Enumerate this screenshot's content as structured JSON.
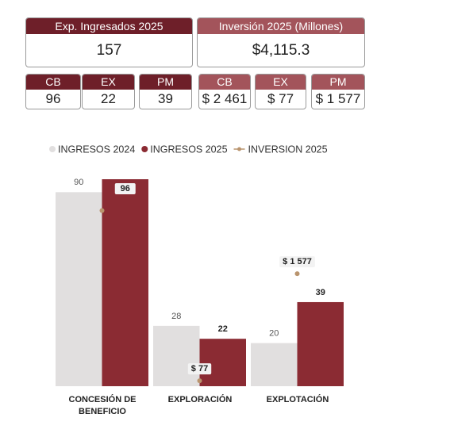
{
  "cards": {
    "main": [
      {
        "title": "Exp. Ingresados 2025",
        "value": "157"
      },
      {
        "title": "Inversión 2025 (Millones)",
        "value": "$4,115.3"
      }
    ],
    "expedientes": [
      {
        "label": "CB",
        "value": "96"
      },
      {
        "label": "EX",
        "value": "22"
      },
      {
        "label": "PM",
        "value": "39"
      }
    ],
    "inversion": [
      {
        "label": "CB",
        "value": "$ 2 461"
      },
      {
        "label": "EX",
        "value": "$  77"
      },
      {
        "label": "PM",
        "value": "$ 1 577"
      }
    ]
  },
  "chart_data": {
    "type": "bar",
    "categories": [
      "CONCESIÓN DE BENEFICIO",
      "EXPLORACIÓN",
      "EXPLOTACIÓN"
    ],
    "series": [
      {
        "name": "INGRESOS 2024",
        "color": "#e1dfdf",
        "values": [
          90,
          28,
          20
        ]
      },
      {
        "name": "INGRESOS 2025",
        "color": "#8b2b33",
        "values": [
          96,
          22,
          39
        ]
      },
      {
        "name": "INVERSION 2025",
        "color": "#b9946e",
        "type": "line",
        "axis": "y2",
        "values": [
          2461,
          77,
          1577
        ],
        "value_labels": [
          null,
          "$ 77",
          "$ 1 577"
        ]
      }
    ],
    "ylim": [
      0,
      96
    ],
    "y2lim": [
      0,
      2900
    ],
    "legend": "top"
  }
}
